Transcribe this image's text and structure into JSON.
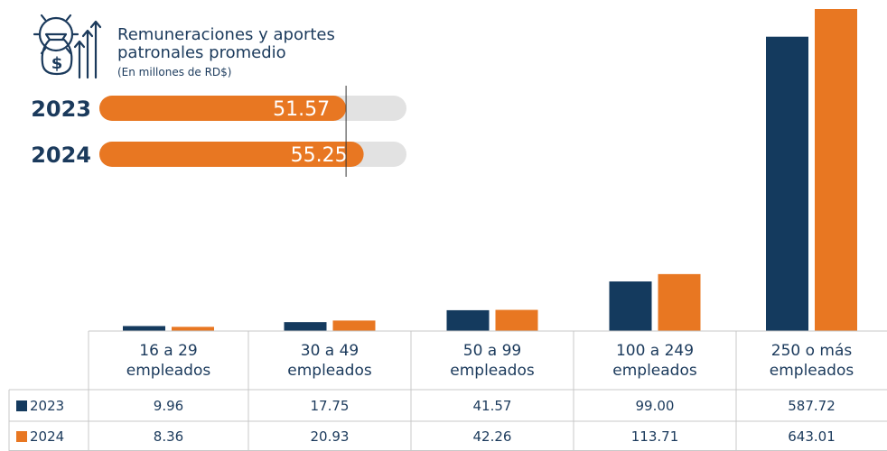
{
  "chart_data": [
    {
      "type": "bar",
      "categories": [
        "16 a 29 empleados",
        "30 a 49 empleados",
        "50 a 99 empleados",
        "100 a 249 empleados",
        "250 o más empleados"
      ],
      "series": [
        {
          "name": "2023",
          "color": "#143a5e",
          "values": [
            9.96,
            17.75,
            41.57,
            99.0,
            587.72
          ],
          "value_labels": [
            "9.96",
            "17.75",
            "41.57",
            "99.00",
            "587.72"
          ]
        },
        {
          "name": "2024",
          "color": "#e87722",
          "values": [
            8.36,
            20.93,
            42.26,
            113.71,
            643.01
          ],
          "value_labels": [
            "8.36",
            "20.93",
            "42.26",
            "113.71",
            "643.01"
          ]
        }
      ]
    },
    {
      "type": "progress",
      "title": "Remuneraciones y aportes patronales promedio",
      "subtitle": "(En millones de RD$)",
      "xlim": [
        0,
        64.2
      ],
      "color": "#e87722",
      "track_color": "#e2e2e2",
      "categories": [
        "2023",
        "2024"
      ],
      "values": [
        51.57,
        55.25
      ]
    }
  ]
}
